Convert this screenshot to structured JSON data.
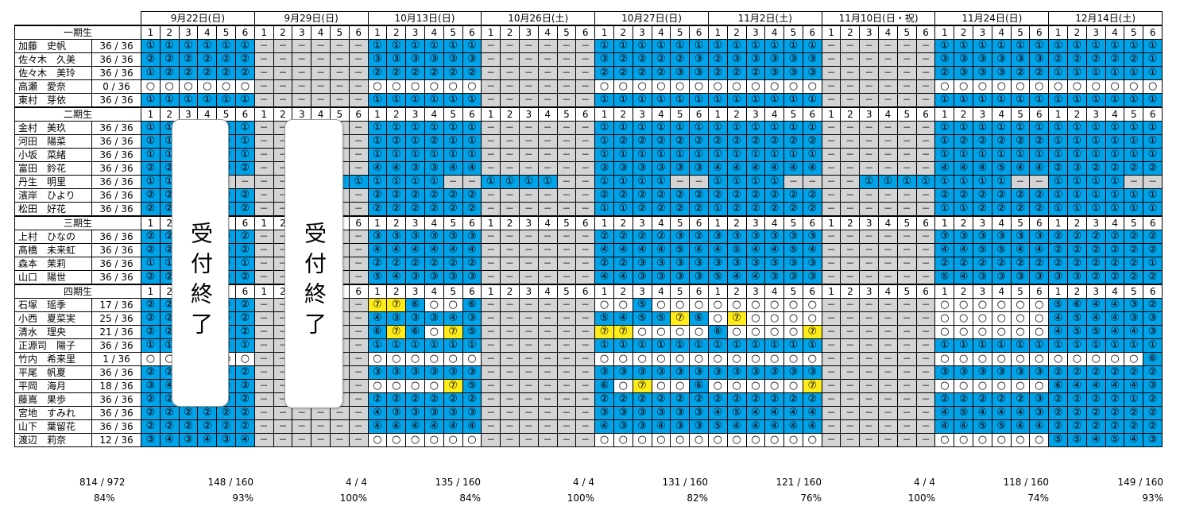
{
  "dates": [
    {
      "label": "9月22日(日)",
      "sessions": [
        "1",
        "2",
        "3",
        "4",
        "5",
        "6"
      ]
    },
    {
      "label": "9月29日(日)",
      "sessions": [
        "1",
        "2",
        "3",
        "4",
        "5",
        "6"
      ]
    },
    {
      "label": "10月13日(日)",
      "sessions": [
        "1",
        "2",
        "3",
        "4",
        "5",
        "6"
      ]
    },
    {
      "label": "10月26日(土)",
      "sessions": [
        "1",
        "2",
        "3",
        "4",
        "5",
        "6"
      ]
    },
    {
      "label": "10月27日(日)",
      "sessions": [
        "1",
        "2",
        "3",
        "4",
        "5",
        "6"
      ]
    },
    {
      "label": "11月2日(土)",
      "sessions": [
        "1",
        "2",
        "3",
        "4",
        "5",
        "6"
      ]
    },
    {
      "label": "11月10日(日・祝)",
      "sessions": [
        "1",
        "2",
        "3",
        "4",
        "5",
        "6"
      ]
    },
    {
      "label": "11月24日(日)",
      "sessions": [
        "1",
        "2",
        "3",
        "4",
        "5",
        "6"
      ]
    },
    {
      "label": "12月14日(土)",
      "sessions": [
        "1",
        "2",
        "3",
        "4",
        "5",
        "6"
      ]
    }
  ],
  "groups": [
    {
      "label": "一期生",
      "members": [
        {
          "name": "加藤　史帆",
          "score": "36 / 36",
          "cells": "b①b①b①b①b①b①|g－g－g－g－g－g－|b①b①b①b①b①b①|g－g－g－g－g－g－|b①b①b①b①b①b①|b①b①b①b①b①b①|g－g－g－g－g－g－|b①b①b①b①b①b①|b①b①b①b①b①b①"
        },
        {
          "name": "佐々木　久美",
          "score": "36 / 36",
          "cells": "b②b②b②b②b②b②|g－g－g－g－g－g－|b③b③b③b③b③b③|g－g－g－g－g－g－|b③b②b②b②b②b③|b②b③b③b③b③b③|g－g－g－g－g－g－|b③b③b③b③b③b③|b②b②b②b②b②b①"
        },
        {
          "name": "佐々木　美玲",
          "score": "36 / 36",
          "cells": "b①b②b②b②b②b②|g－g－g－g－g－g－|b②b②b②b②b②b②|g－g－g－g－g－g－|b②b②b②b②b③b③|b②b②b②b③b③b③|g－g－g－g－g－g－|b②b③b③b③b②b②|b①b①b①b①b①b①"
        },
        {
          "name": "高瀬　愛奈",
          "score": "0 / 36",
          "cells": "w○w○w○w○w○w○|g－g－g－g－g－g－|w○w○w○w○w○w○|g－g－g－g－g－g－|w○w○w○w○w○w○|w○w○w○w○w○w○|g－g－g－g－g－g－|w○w○w○w○w○w○|w○w○w○w○w○w○"
        },
        {
          "name": "東村　芽依",
          "score": "36 / 36",
          "cells": "b①b①b①b①b①b①|g－g－g－g－g－g－|b①b①b①b①b①b①|g－g－g－g－g－g－|b①b①b①b①b①b①|b①b①b①b①b①b①|g－g－g－g－g－g－|b①b①b①b①b①b①|b①b①b①b①b①b①"
        }
      ]
    },
    {
      "label": "二期生",
      "members": [
        {
          "name": "金村　美玖",
          "score": "36 / 36",
          "cells": "b①b①b①b①b①b①|g－g－g－g－g－g－|b①b①b①b①b①b①|g－g－g－g－g－g－|b①b①b①b①b①b①|b①b①b①b①b①b①|g－g－g－g－g－g－|b①b①b①b①b①b①|b①b①b①b①b①b①"
        },
        {
          "name": "河田　陽菜",
          "score": "36 / 36",
          "cells": "b①b①b①b①b①b①|g－g－g－g－g－g－|b①b②b①b②b①b①|g－g－g－g－g－g－|b①b②b②b②b②b②|b②b②b②b②b②b②|g－g－g－g－g－g－|b①b②b②b②b②b②|b①b①b①b①b①b①"
        },
        {
          "name": "小坂　菜緒",
          "score": "36 / 36",
          "cells": "b①b①b①b①b①b①|g－g－g－g－g－g－|b①b①b①b①b①b①|g－g－g－g－g－g－|b①b①b①b①b①b①|b①b①b①b①b①b①|g－g－g－g－g－g－|b①b①b①b①b①b①|b①b①b①b①b①b①"
        },
        {
          "name": "富田　鈴花",
          "score": "36 / 36",
          "cells": "b②b②b②b②b②b②|g－g－g－g－g－g－|b④b④b③b③b④b④|g－g－g－g－g－g－|b③b③b③b③b③b③|b④b④b④b④b④b④|g－g－g－g－g－g－|b④b④b④b⑤b④b④|b②b③b②b②b②b②"
        },
        {
          "name": "丹生　明里",
          "score": "36 / 36",
          "cells": "b①b①b①g－g－g－|g－g－g－g－b①b①|b①b①b①b①g－g－|b①b①b①b①g－g－|b①b①b①b①g－g－|b①b①b①b①g－g－|g－g－b①b①b①b①|b①b①b①b①g－g－|b①b①b①b①g－g－"
        },
        {
          "name": "濱岸　ひより",
          "score": "36 / 36",
          "cells": "b②b②b②b②b②b②|g－g－g－g－g－g－|b②b②b②b②b②b②|g－g－g－g－g－g－|b②b②b②b②b②b②|b②b②b②b②b②b②|g－g－g－g－g－g－|b②b②b②b②b②b②|b①b①b①b①b①b①"
        },
        {
          "name": "松田　好花",
          "score": "36 / 36",
          "cells": "b②b②b②b②b②b②|g－g－g－g－g－g－|b②b②b②b②b②b②|g－g－g－g－g－g－|b①b①b②b②b②b②|b①b②b②b②b②b②|g－g－g－g－g－g－|b①b①b②b②b②b②|b①b①b①b①b①b①"
        }
      ]
    },
    {
      "label": "三期生",
      "members": [
        {
          "name": "上村　ひなの",
          "score": "36 / 36",
          "cells": "b②b②b②b②b②b②|g－g－g－g－g－g－|b③b③b③b③b③b③|g－g－g－g－g－g－|b②b②b②b②b③b②|b③b③b③b③b③b③|g－g－g－g－g－g－|b③b③b③b③b③b③|b②b②b②b②b②b②"
        },
        {
          "name": "髙橋　未来虹",
          "score": "36 / 36",
          "cells": "b②b②b②b②b②b②|g－g－g－g－g－g－|b④b④b④b④b④b④|g－g－g－g－g－g－|b④b④b④b④b⑤b④|b④b⑤b④b④b⑤b④|g－g－g－g－g－g－|b④b④b⑤b⑤b④b④|b②b②b②b②b②b②"
        },
        {
          "name": "森本　茉莉",
          "score": "36 / 36",
          "cells": "b①b①b①b①b①b①|g－g－g－g－g－g－|b②b②b②b②b②b②|g－g－g－g－g－g－|b②b②b③b③b③b③|b③b③b③b③b③b③|g－g－g－g－g－g－|b②b②b②b②b②b②|b②b②b②b②b②b①"
        },
        {
          "name": "山口　陽世",
          "score": "36 / 36",
          "cells": "b②b②b②b②b②b②|g－g－g－g－g－g－|b⑤b④b③b③b③b③|g－g－g－g－g－g－|b④b④b③b③b③b③|b⑤b④b④b③b③b③|g－g－g－g－g－g－|b⑤b④b③b③b③b③|b③b③b②b②b②b②"
        }
      ]
    },
    {
      "label": "四期生",
      "members": [
        {
          "name": "石塚　瑶季",
          "score": "17 / 36",
          "cells": "b②b②b②b②b②b②|g－g－g－g－g－g－|y⑦y⑦b⑥w○w○b⑥|g－g－g－g－g－g－|w○w○b⑤w○w○w○|w○w○w○w○w○w○|g－g－g－g－g－g－|w○w○w○w○w○w○|b⑤b⑥b④b④b③b②"
        },
        {
          "name": "小西　夏菜実",
          "score": "25 / 36",
          "cells": "b②b②b②b②b②b②|g－g－g－g－g－g－|b④b③b③b③b④b③|g－g－g－g－g－g－|b⑤b④b⑤b⑤y⑦b⑥|w○y⑦w○w○w○w○|g－g－g－g－g－g－|w○w○w○w○w○w○|b④b⑤b④b④b③b③"
        },
        {
          "name": "清水　理央",
          "score": "21 / 36",
          "cells": "b②b②b②b②b②b②|g－g－g－g－g－g－|b⑥y⑦b⑥w○y⑦b⑤|g－g－g－g－g－g－|y⑦y⑦w○w○w○w○|b⑥w○w○w○w○y⑦|g－g－g－g－g－g－|w○w○w○w○w○w○|b④b⑤b⑤b④b④b③"
        },
        {
          "name": "正源司　陽子",
          "score": "36 / 36",
          "cells": "b①b①b①b①b①b①|g－g－g－g－g－g－|b①b①b①b①b①b①|g－g－g－g－g－g－|b①b①b①b①b①b①|b①b①b①b①b①b①|g－g－g－g－g－g－|b①b①b①b①b①b①|b①b①b①b①b①b①"
        },
        {
          "name": "竹内　希来里",
          "score": "1 / 36",
          "cells": "w○w○w○w○w○w○|g－g－g－g－g－g－|w○w○w○w○w○w○|g－g－g－g－g－g－|w○w○w○w○w○w○|w○w○w○w○w○w○|g－g－g－g－g－g－|w○w○w○w○w○w○|w○w○w○w○w○b⑥"
        },
        {
          "name": "平尾　帆夏",
          "score": "36 / 36",
          "cells": "b②b②b②b②b②b②|g－g－g－g－g－g－|b③b③b③b③b③b③|g－g－g－g－g－g－|b③b③b③b③b③b③|b③b③b③b③b③b③|g－g－g－g－g－g－|b③b③b③b③b③b③|b②b②b②b②b②b②"
        },
        {
          "name": "平岡　海月",
          "score": "18 / 36",
          "cells": "b③b④b③b④b④b③|g－g－g－g－g－g－|w○w○w○w○y⑦b⑤|g－g－g－g－g－g－|b⑥w○y⑦w○w○b⑥|w○w○w○w○w○y⑦|g－g－g－g－g－g－|w○w○w○w○w○w○|b⑥b④b④b④b④b③"
        },
        {
          "name": "藤嶌　果歩",
          "score": "36 / 36",
          "cells": "b②b②b②b②b②b②|g－g－g－g－g－g－|b②b②b②b②b②b②|g－g－g－g－g－g－|b②b②b②b②b②b②|b②b②b②b②b②b②|g－g－g－g－g－g－|b②b②b②b②b②b③|b②b②b②b②b①b②"
        },
        {
          "name": "宮地　すみれ",
          "score": "36 / 36",
          "cells": "b②b②b②b②b②b②|g－g－g－g－g－g－|b④b③b③b③b③b③|g－g－g－g－g－g－|b③b③b③b③b③b③|b④b⑤b④b④b④b④|g－g－g－g－g－g－|b④b⑤b④b④b④b③|b②b②b②b②b②b②"
        },
        {
          "name": "山下　葉留花",
          "score": "36 / 36",
          "cells": "b②b②b②b②b②b②|g－g－g－g－g－g－|b④b④b④b④b④b④|g－g－g－g－g－g－|b④b③b③b④b③b③|b⑤b④b④b④b④b④|g－g－g－g－g－g－|b④b④b⑤b⑤b④b④|b②b②b②b②b②b②"
        },
        {
          "name": "渡辺　莉奈",
          "score": "12 / 36",
          "cells": "b③b④b③b④b③b④|g－g－g－g－g－g－|w○w○w○w○w○w○|g－g－g－g－g－g－|w○w○w○w○w○w○|w○w○w○w○w○w○|g－g－g－g－g－g－|w○w○w○w○w○w○|b⑤b⑤b④b⑤b④b③"
        }
      ]
    }
  ],
  "overlays": [
    "受付終了",
    "受付終了"
  ],
  "totals": {
    "overall": {
      "count": "814 / 972",
      "pct": "84%"
    },
    "per_date": [
      {
        "count": "148 / 160",
        "pct": "93%"
      },
      {
        "count": "4 / 4",
        "pct": "100%"
      },
      {
        "count": "135 / 160",
        "pct": "84%"
      },
      {
        "count": "4 / 4",
        "pct": "100%"
      },
      {
        "count": "131 / 160",
        "pct": "82%"
      },
      {
        "count": "121 / 160",
        "pct": "76%"
      },
      {
        "count": "4 / 4",
        "pct": "100%"
      },
      {
        "count": "118 / 160",
        "pct": "74%"
      },
      {
        "count": "149 / 160",
        "pct": "93%"
      }
    ]
  },
  "colors": {
    "available": "#00a2e8",
    "closed": "#d4d4d4",
    "free": "#ffffff",
    "highlight": "#ffec1a"
  }
}
